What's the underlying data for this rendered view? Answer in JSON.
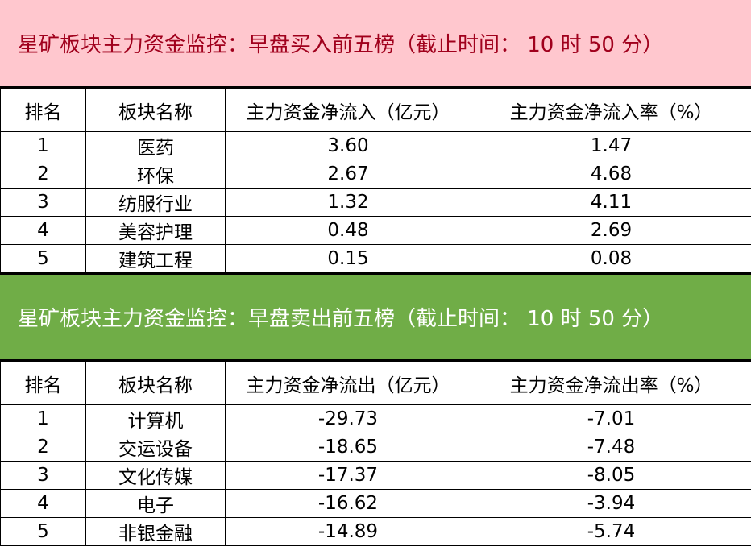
{
  "buy": {
    "title": "星矿板块主力资金监控：早盘买入前五榜（截止时间： 10 时 50 分）",
    "headers": [
      "排名",
      "板块名称",
      "主力资金净流入（亿元）",
      "主力资金净流入率（%）"
    ],
    "rows": [
      [
        "1",
        "医药",
        "3.60",
        "1.47"
      ],
      [
        "2",
        "环保",
        "2.67",
        "4.68"
      ],
      [
        "3",
        "纺服行业",
        "1.32",
        "4.11"
      ],
      [
        "4",
        "美容护理",
        "0.48",
        "2.69"
      ],
      [
        "5",
        "建筑工程",
        "0.15",
        "0.08"
      ]
    ]
  },
  "sell": {
    "title": "星矿板块主力资金监控：早盘卖出前五榜（截止时间： 10 时 50 分）",
    "headers": [
      "排名",
      "板块名称",
      "主力资金净流出（亿元）",
      "主力资金净流出率（%）"
    ],
    "rows": [
      [
        "1",
        "计算机",
        "-29.73",
        "-7.01"
      ],
      [
        "2",
        "交运设备",
        "-18.65",
        "-7.48"
      ],
      [
        "3",
        "文化传媒",
        "-17.37",
        "-8.05"
      ],
      [
        "4",
        "电子",
        "-16.62",
        "-3.94"
      ],
      [
        "5",
        "非银金融",
        "-14.89",
        "-5.74"
      ]
    ]
  },
  "colors": {
    "buy_band": "#FFC7CE",
    "sell_band": "#70AD47"
  }
}
